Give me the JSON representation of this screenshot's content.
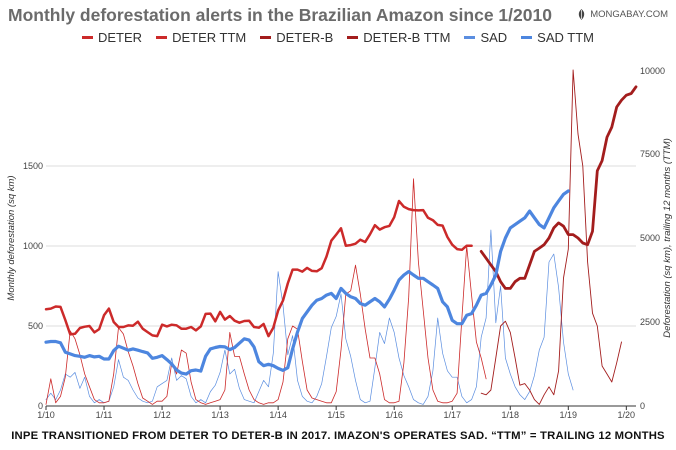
{
  "header": {
    "title": "Monthly deforestation alerts in the Brazilian Amazon since 1/2010",
    "brand": "MONGABAY.COM"
  },
  "footer": {
    "note": "INPE TRANSITIONED FROM DETER TO DETER-B IN 2017. IMAZON'S OPERATES SAD. “TTM” = TRAILING 12 MONTHS"
  },
  "chart_data": {
    "type": "line",
    "title": "Monthly deforestation alerts in the Brazilian Amazon since 1/2010",
    "xlabel": "",
    "ylabel": "Monthly deforestation (sq km)",
    "y2label": "Deforestation (sq km), trailing 12 months (TTM)",
    "ylim": [
      0,
      2100
    ],
    "y2lim": [
      0,
      10000
    ],
    "xlim": [
      0,
      122
    ],
    "yticks": [
      0,
      500,
      1000,
      1500
    ],
    "y2ticks": [
      0,
      2500,
      5000,
      7500,
      10000
    ],
    "x_tick_labels": [
      "1/10",
      "1/11",
      "1/12",
      "1/13",
      "1/14",
      "1/15",
      "1/16",
      "1/17",
      "1/18",
      "1/19",
      "1/20"
    ],
    "x_tick_months": [
      0,
      12,
      24,
      36,
      48,
      60,
      72,
      84,
      96,
      108,
      120
    ],
    "x_unit": "months since 1/2010",
    "series": [
      {
        "name": "DETER",
        "axis": "left",
        "color": "#cc2a2a",
        "width": 0.8,
        "x_start": 0,
        "values": [
          10,
          170,
          20,
          60,
          180,
          470,
          420,
          320,
          200,
          120,
          40,
          20,
          20,
          30,
          200,
          490,
          450,
          340,
          250,
          140,
          50,
          30,
          10,
          30,
          30,
          60,
          270,
          200,
          350,
          330,
          150,
          40,
          20,
          10,
          20,
          30,
          40,
          100,
          460,
          310,
          310,
          200,
          100,
          40,
          20,
          10,
          20,
          20,
          40,
          150,
          420,
          500,
          480,
          280,
          100,
          50,
          40,
          30,
          20,
          20,
          90,
          350,
          700,
          720,
          880,
          700,
          480,
          300,
          300,
          200,
          40,
          20,
          20,
          30,
          270,
          680,
          1420,
          900,
          600,
          300,
          100,
          30,
          20,
          20,
          30,
          80,
          550,
          1000,
          690,
          400,
          300,
          170
        ]
      },
      {
        "name": "DETER TTM",
        "axis": "right",
        "color": "#cc2a2a",
        "width": 2.5,
        "x_start": 0,
        "values": [
          2880,
          2900,
          2960,
          2950,
          2560,
          2130,
          2150,
          2320,
          2360,
          2380,
          2190,
          2290,
          2700,
          2900,
          2500,
          2350,
          2350,
          2400,
          2390,
          2510,
          2300,
          2200,
          2100,
          2080,
          2420,
          2370,
          2420,
          2400,
          2300,
          2300,
          2350,
          2250,
          2370,
          2740,
          2750,
          2520,
          2800,
          2570,
          2680,
          2540,
          2480,
          2530,
          2540,
          2350,
          2330,
          2440,
          2080,
          2330,
          2840,
          3140,
          3650,
          4060,
          4060,
          4000,
          4110,
          4020,
          4010,
          4100,
          4450,
          4920,
          5100,
          5290,
          4770,
          4790,
          4830,
          4950,
          4880,
          5110,
          5380,
          5250,
          5320,
          5360,
          5620,
          6100,
          5930,
          5860,
          5830,
          5820,
          5830,
          5600,
          5530,
          5390,
          5370,
          5030,
          4800,
          4670,
          4650,
          4770,
          4770
        ]
      },
      {
        "name": "DETER-B",
        "axis": "left",
        "color": "#a31d1d",
        "width": 0.9,
        "x_start": 90,
        "values": [
          80,
          70,
          100,
          300,
          500,
          530,
          460,
          300,
          130,
          140,
          100,
          40,
          10,
          70,
          120,
          70,
          220,
          800,
          980,
          2100,
          1700,
          1500,
          900,
          580,
          500,
          250,
          200,
          150,
          270,
          400
        ]
      },
      {
        "name": "DETER-B TTM",
        "axis": "right",
        "color": "#a31d1d",
        "width": 2.8,
        "x_start": 90,
        "values": [
          4600,
          4400,
          4200,
          4000,
          3700,
          3500,
          3500,
          3700,
          3800,
          3800,
          4200,
          4600,
          4700,
          4800,
          5000,
          5300,
          5450,
          5350,
          5100,
          5100,
          5000,
          4850,
          4800,
          5200,
          7000,
          7300,
          8000,
          8300,
          8900,
          9100,
          9250,
          9300,
          9500
        ]
      },
      {
        "name": "SAD",
        "axis": "left",
        "color": "#5b8ee0",
        "width": 0.7,
        "x_start": 0,
        "values": [
          40,
          80,
          40,
          100,
          200,
          180,
          210,
          110,
          180,
          60,
          20,
          40,
          20,
          30,
          120,
          290,
          180,
          160,
          100,
          50,
          30,
          20,
          30,
          120,
          140,
          160,
          300,
          160,
          190,
          170,
          60,
          20,
          40,
          20,
          90,
          130,
          210,
          350,
          200,
          230,
          110,
          40,
          30,
          20,
          90,
          160,
          120,
          330,
          840,
          630,
          320,
          440,
          160,
          60,
          30,
          20,
          60,
          140,
          310,
          490,
          560,
          700,
          420,
          310,
          160,
          40,
          20,
          30,
          240,
          460,
          390,
          550,
          460,
          300,
          190,
          120,
          40,
          20,
          10,
          60,
          220,
          550,
          330,
          220,
          180,
          180,
          60,
          20,
          40,
          120,
          430,
          550,
          1100,
          520,
          750,
          300,
          200,
          120,
          70,
          40,
          90,
          190,
          350,
          430,
          900,
          950,
          740,
          400,
          200,
          100
        ]
      },
      {
        "name": "SAD TTM",
        "axis": "right",
        "color": "#4d86df",
        "width": 3.2,
        "x_start": 0,
        "values": [
          1900,
          1920,
          1920,
          1880,
          1600,
          1550,
          1500,
          1480,
          1450,
          1500,
          1460,
          1480,
          1400,
          1400,
          1650,
          1780,
          1720,
          1660,
          1700,
          1660,
          1620,
          1580,
          1420,
          1450,
          1500,
          1380,
          1250,
          1070,
          980,
          950,
          1050,
          1070,
          1040,
          1480,
          1700,
          1740,
          1770,
          1760,
          1680,
          1740,
          1870,
          2000,
          1960,
          1760,
          1320,
          1200,
          1240,
          1200,
          1120,
          1060,
          1140,
          1700,
          2200,
          2600,
          2800,
          3000,
          3150,
          3200,
          3300,
          3350,
          3200,
          3500,
          3350,
          3250,
          3200,
          3050,
          3000,
          3100,
          3200,
          3100,
          2950,
          3180,
          3450,
          3750,
          3900,
          4000,
          3900,
          3800,
          3800,
          3700,
          3600,
          3500,
          3100,
          2950,
          2550,
          2450,
          2450,
          2700,
          2750,
          3000,
          3300,
          3350,
          3600,
          3900,
          4600,
          5000,
          5300,
          5400,
          5500,
          5600,
          5800,
          5600,
          5400,
          5300,
          5600,
          5900,
          6100,
          6300,
          6400
        ]
      }
    ]
  }
}
